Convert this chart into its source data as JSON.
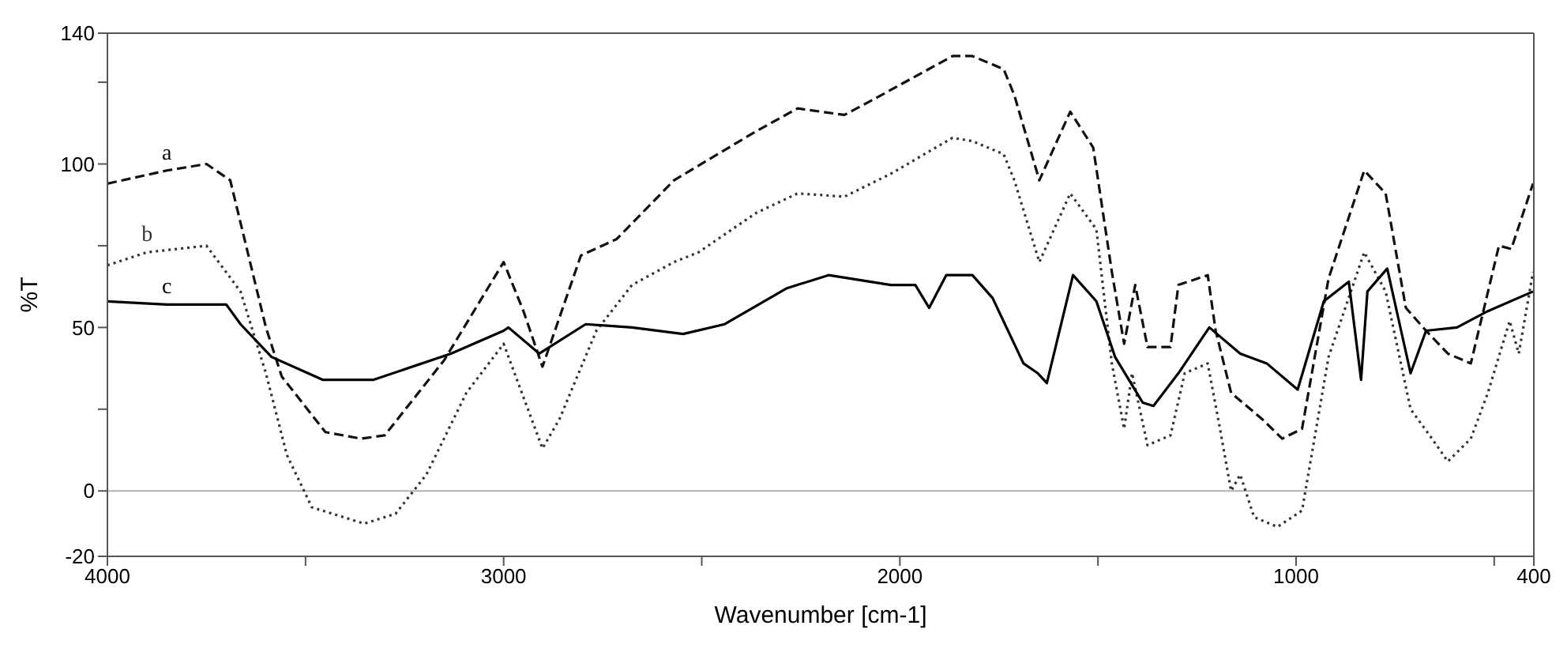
{
  "chart_data": {
    "type": "line",
    "xlabel": "Wavenumber [cm-1]",
    "ylabel": "%T",
    "xlim": [
      4000,
      400
    ],
    "ylim": [
      -20,
      140
    ],
    "xticks": [
      4000,
      {
        "value": 3500,
        "label": null
      },
      3000,
      {
        "value": 2500,
        "label": null
      },
      2000,
      {
        "value": 1500,
        "label": null
      },
      1000,
      {
        "value": 500,
        "label": null
      },
      400
    ],
    "yticks": [
      -20,
      0,
      {
        "value": 25,
        "label": null
      },
      50,
      {
        "value": 75,
        "label": null
      },
      100,
      {
        "value": 125,
        "label": null
      },
      140
    ],
    "grid": false,
    "marker": "none",
    "ref_lines": [
      {
        "axis": "y",
        "value": 0,
        "color": "#b0b0b0"
      }
    ],
    "series": [
      {
        "name": "a",
        "color": "#111111",
        "line_style": "dashed",
        "x": [
          4000,
          3850,
          3750,
          3690,
          3600,
          3560,
          3450,
          3360,
          3300,
          3150,
          3000,
          2950,
          2902,
          2805,
          2715,
          2570,
          2363,
          2258,
          2140,
          2078,
          1867,
          1817,
          1738,
          1711,
          1648,
          1570,
          1512,
          1465,
          1434,
          1406,
          1375,
          1317,
          1297,
          1223,
          1203,
          1164,
          1086,
          1035,
          985,
          918,
          828,
          774,
          723,
          672,
          617,
          559,
          488,
          457,
          402
        ],
        "values": [
          94,
          98,
          100,
          95,
          50,
          35,
          18,
          16,
          17,
          40,
          70,
          55,
          38,
          72,
          77,
          95,
          110,
          117,
          115,
          119,
          133,
          133,
          129,
          121,
          95,
          116,
          105,
          67,
          45,
          63,
          44,
          44,
          63,
          66,
          49,
          30,
          22,
          16,
          19,
          65,
          98,
          91,
          56,
          49,
          42,
          39,
          75,
          74,
          94
        ]
      },
      {
        "name": "b",
        "color": "#333333",
        "line_style": "dotted",
        "x": [
          4000,
          3900,
          3750,
          3664,
          3600,
          3547,
          3484,
          3352,
          3273,
          3195,
          3094,
          3000,
          2902,
          2859,
          2766,
          2676,
          2570,
          2508,
          2363,
          2258,
          2140,
          2023,
          1867,
          1817,
          1738,
          1711,
          1648,
          1570,
          1504,
          1465,
          1434,
          1414,
          1375,
          1317,
          1281,
          1223,
          1192,
          1164,
          1141,
          1106,
          1047,
          985,
          918,
          828,
          774,
          711,
          657,
          617,
          559,
          516,
          461,
          438,
          402
        ],
        "values": [
          69,
          73,
          75,
          61,
          36,
          11,
          -5,
          -10,
          -7,
          5,
          30,
          45,
          13,
          22,
          49,
          63,
          70,
          73,
          85,
          91,
          90,
          97,
          108,
          107,
          103,
          95,
          70,
          91,
          80,
          39,
          19,
          36,
          14,
          17,
          36,
          39,
          19,
          0,
          5,
          -8,
          -11,
          -6,
          41,
          73,
          61,
          25,
          16,
          9,
          16,
          30,
          52,
          42,
          67
        ]
      },
      {
        "name": "c",
        "color": "#000000",
        "line_style": "solid",
        "x": [
          4000,
          3850,
          3700,
          3664,
          3586,
          3457,
          3328,
          3133,
          3000,
          2988,
          2910,
          2793,
          2676,
          2547,
          2442,
          2285,
          2180,
          2023,
          1961,
          1926,
          1883,
          1817,
          1766,
          1688,
          1652,
          1629,
          1563,
          1504,
          1457,
          1387,
          1360,
          1297,
          1219,
          1141,
          1074,
          996,
          930,
          867,
          836,
          820,
          770,
          711,
          672,
          594,
          516,
          402
        ],
        "values": [
          58,
          57,
          57,
          51,
          41,
          34,
          34,
          42,
          49,
          50,
          42,
          51,
          50,
          48,
          51,
          62,
          66,
          63,
          63,
          56,
          66,
          66,
          59,
          39,
          36,
          33,
          66,
          58,
          41,
          27,
          26,
          36,
          50,
          42,
          39,
          31,
          58,
          64,
          34,
          61,
          68,
          36,
          49,
          50,
          55,
          61
        ]
      }
    ]
  }
}
